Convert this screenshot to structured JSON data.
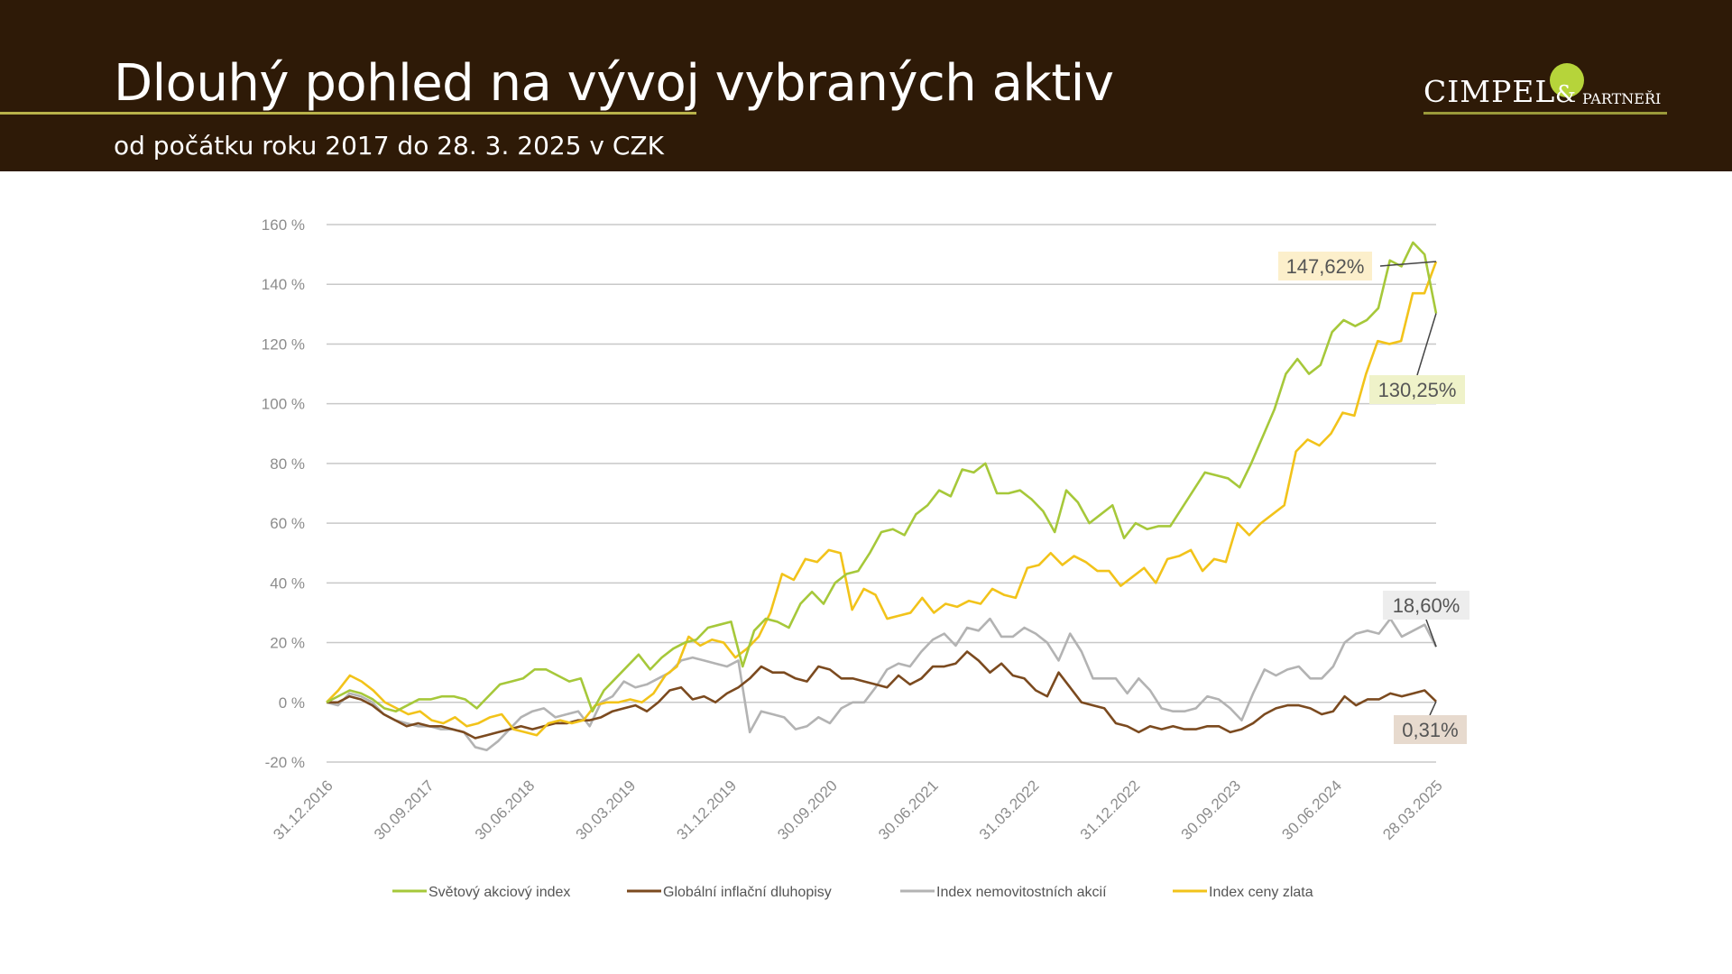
{
  "header": {
    "title": "Dlouhý pohled na vývoj vybraných aktiv",
    "subtitle": "od počátku roku 2017 do 28. 3. 2025 v CZK",
    "logo_text": "CIMPEL & PARTNEŘI",
    "logo_name": "CIMPEL",
    "logo_amp": "&",
    "logo_partners": "PARTNEŘI"
  },
  "colors": {
    "header_bg": "#2e1a07",
    "world": "#a6c83a",
    "bonds": "#7b4a1f",
    "realestate": "#b3b3b3",
    "gold": "#f2c31a"
  },
  "chart_data": {
    "type": "line",
    "title": "",
    "xlabel": "",
    "ylabel": "",
    "ylim": [
      -20,
      160
    ],
    "yticks": [
      -20,
      0,
      20,
      40,
      60,
      80,
      100,
      120,
      140,
      160
    ],
    "ytick_labels": [
      "-20 %",
      "0 %",
      "20 %",
      "40 %",
      "60 %",
      "80 %",
      "100 %",
      "120 %",
      "140 %",
      "160 %"
    ],
    "xtick_labels": [
      "31.12.2016",
      "30.09.2017",
      "30.06.2018",
      "30.03.2019",
      "31.12.2019",
      "30.09.2020",
      "30.06.2021",
      "31.03.2022",
      "31.12.2022",
      "30.09.2023",
      "30.06.2024",
      "28.03.2025"
    ],
    "grid": true,
    "legend_position": "bottom",
    "series": [
      {
        "name": "Světový akciový index",
        "key": "world",
        "end_label": "130,25%",
        "values": [
          0,
          2,
          4,
          3,
          1,
          -2,
          -3,
          -1,
          1,
          1,
          2,
          2,
          1,
          -2,
          2,
          6,
          7,
          8,
          11,
          11,
          9,
          7,
          8,
          -3,
          4,
          8,
          12,
          16,
          11,
          15,
          18,
          20,
          21,
          25,
          26,
          27,
          12,
          24,
          28,
          27,
          25,
          33,
          37,
          33,
          40,
          43,
          44,
          50,
          57,
          58,
          56,
          63,
          66,
          71,
          69,
          78,
          77,
          80,
          70,
          70,
          71,
          68,
          64,
          57,
          71,
          67,
          60,
          63,
          66,
          55,
          60,
          58,
          59,
          59,
          65,
          71,
          77,
          76,
          75,
          72,
          80,
          89,
          98,
          110,
          115,
          110,
          113,
          124,
          128,
          126,
          128,
          132,
          148,
          146,
          154,
          150,
          130.25
        ]
      },
      {
        "name": "Globální inflační dluhopisy",
        "key": "bonds",
        "end_label": "0,31%",
        "values": [
          0,
          0,
          2,
          1,
          -1,
          -4,
          -6,
          -8,
          -7,
          -8,
          -8,
          -9,
          -10,
          -12,
          -11,
          -10,
          -9,
          -8,
          -9,
          -8,
          -7,
          -7,
          -6,
          -6,
          -5,
          -3,
          -2,
          -1,
          -3,
          0,
          4,
          5,
          1,
          2,
          0,
          3,
          5,
          8,
          12,
          10,
          10,
          8,
          7,
          12,
          11,
          8,
          8,
          7,
          6,
          5,
          9,
          6,
          8,
          12,
          12,
          13,
          17,
          14,
          10,
          13,
          9,
          8,
          4,
          2,
          10,
          5,
          0,
          -1,
          -2,
          -7,
          -8,
          -10,
          -8,
          -9,
          -8,
          -9,
          -9,
          -8,
          -8,
          -10,
          -9,
          -7,
          -4,
          -2,
          -1,
          -1,
          -2,
          -4,
          -3,
          2,
          -1,
          1,
          1,
          3,
          2,
          3,
          4,
          0.31
        ]
      },
      {
        "name": "Index nemovitostních akcií",
        "key": "realestate",
        "end_label": "18,60%",
        "values": [
          0,
          -1,
          3,
          2,
          0,
          -4,
          -6,
          -7,
          -8,
          -8,
          -9,
          -9,
          -10,
          -15,
          -16,
          -13,
          -9,
          -5,
          -3,
          -2,
          -5,
          -4,
          -3,
          -8,
          0,
          2,
          7,
          5,
          6,
          8,
          10,
          14,
          15,
          14,
          13,
          12,
          14,
          -10,
          -3,
          -4,
          -5,
          -9,
          -8,
          -5,
          -7,
          -2,
          0,
          0,
          5,
          11,
          13,
          12,
          17,
          21,
          23,
          19,
          25,
          24,
          28,
          22,
          22,
          25,
          23,
          20,
          14,
          23,
          17,
          8,
          8,
          8,
          3,
          8,
          4,
          -2,
          -3,
          -3,
          -2,
          2,
          1,
          -2,
          -6,
          3,
          11,
          9,
          11,
          12,
          8,
          8,
          12,
          20,
          23,
          24,
          23,
          28,
          22,
          24,
          26,
          18.6
        ]
      },
      {
        "name": "Index ceny zlata",
        "key": "gold",
        "end_label": "147,62%",
        "values": [
          0,
          4,
          9,
          7,
          4,
          0,
          -2,
          -4,
          -3,
          -6,
          -7,
          -5,
          -8,
          -7,
          -5,
          -4,
          -9,
          -10,
          -11,
          -7,
          -6,
          -7,
          -6,
          -1,
          0,
          0,
          1,
          0,
          3,
          9,
          12,
          22,
          19,
          21,
          20,
          15,
          18,
          22,
          30,
          43,
          41,
          48,
          47,
          51,
          50,
          31,
          38,
          36,
          28,
          29,
          30,
          35,
          30,
          33,
          32,
          34,
          33,
          38,
          36,
          35,
          45,
          46,
          50,
          46,
          49,
          47,
          44,
          44,
          39,
          42,
          45,
          40,
          48,
          49,
          51,
          44,
          48,
          47,
          60,
          56,
          60,
          63,
          66,
          84,
          88,
          86,
          90,
          97,
          96,
          110,
          121,
          120,
          121,
          137,
          137,
          147.62
        ]
      }
    ]
  }
}
